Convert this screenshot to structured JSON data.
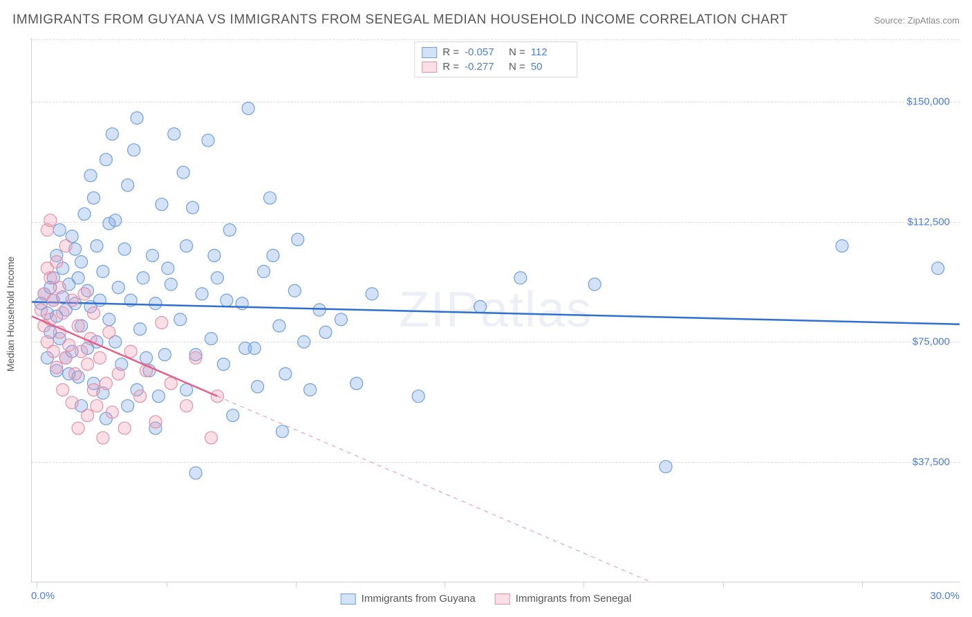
{
  "title": "IMMIGRANTS FROM GUYANA VS IMMIGRANTS FROM SENEGAL MEDIAN HOUSEHOLD INCOME CORRELATION CHART",
  "source": "Source: ZipAtlas.com",
  "watermark": "ZIPatlas",
  "chart": {
    "type": "scatter",
    "ylabel": "Median Household Income",
    "xlim": [
      0.0,
      30.0
    ],
    "xlim_labels": [
      "0.0%",
      "30.0%"
    ],
    "ylim": [
      0,
      170000
    ],
    "ytick_values": [
      37500,
      75000,
      112500,
      150000
    ],
    "ytick_labels": [
      "$37,500",
      "$75,000",
      "$112,500",
      "$150,000"
    ],
    "xtick_positions_pct": [
      0.5,
      14.5,
      28.5,
      44.5,
      59.5,
      74.5,
      89.5
    ],
    "grid_color": "#dcdcdc",
    "axis_color": "#d0d0d0",
    "background_color": "#ffffff",
    "ytick_label_color": "#4a7dd6",
    "ylabel_color": "#555555",
    "marker_radius": 9,
    "marker_stroke_width": 1.2,
    "trend_line_width": 2.5
  },
  "series": [
    {
      "name": "Immigrants from Guyana",
      "fill_color": "rgba(120,165,230,0.32)",
      "stroke_color": "#6f9fe0",
      "trend_color": "#2f6fd0",
      "R": "-0.057",
      "N": "112",
      "trend": {
        "x1": 0.0,
        "y1": 87500,
        "x2": 30.0,
        "y2": 80500
      },
      "trend_dash_extrapolate": false,
      "points": [
        [
          0.3,
          87000
        ],
        [
          0.4,
          90000
        ],
        [
          0.5,
          84000
        ],
        [
          0.6,
          92000
        ],
        [
          0.6,
          78000
        ],
        [
          0.7,
          88000
        ],
        [
          0.7,
          95000
        ],
        [
          0.8,
          83000
        ],
        [
          0.8,
          102000
        ],
        [
          0.9,
          110000
        ],
        [
          0.9,
          76000
        ],
        [
          1.0,
          89000
        ],
        [
          1.0,
          98000
        ],
        [
          1.1,
          70000
        ],
        [
          1.1,
          85000
        ],
        [
          1.2,
          93000
        ],
        [
          1.3,
          72000
        ],
        [
          1.3,
          108000
        ],
        [
          1.4,
          87000
        ],
        [
          1.5,
          64000
        ],
        [
          1.5,
          95000
        ],
        [
          1.6,
          100000
        ],
        [
          1.6,
          80000
        ],
        [
          1.7,
          115000
        ],
        [
          1.8,
          73000
        ],
        [
          1.8,
          91000
        ],
        [
          1.9,
          86000
        ],
        [
          2.0,
          120000
        ],
        [
          2.0,
          62000
        ],
        [
          2.1,
          105000
        ],
        [
          2.2,
          88000
        ],
        [
          2.3,
          59000
        ],
        [
          2.3,
          97000
        ],
        [
          2.4,
          51000
        ],
        [
          2.5,
          112000
        ],
        [
          2.5,
          82000
        ],
        [
          2.6,
          140000
        ],
        [
          2.7,
          75000
        ],
        [
          2.8,
          92000
        ],
        [
          2.9,
          68000
        ],
        [
          3.0,
          104000
        ],
        [
          3.1,
          55000
        ],
        [
          3.2,
          88000
        ],
        [
          3.3,
          135000
        ],
        [
          3.4,
          145000
        ],
        [
          3.5,
          79000
        ],
        [
          3.6,
          95000
        ],
        [
          3.8,
          66000
        ],
        [
          3.9,
          102000
        ],
        [
          4.0,
          48000
        ],
        [
          4.0,
          87000
        ],
        [
          4.2,
          118000
        ],
        [
          4.3,
          71000
        ],
        [
          4.5,
          93000
        ],
        [
          4.6,
          140000
        ],
        [
          4.8,
          82000
        ],
        [
          5.0,
          105000
        ],
        [
          5.0,
          60000
        ],
        [
          5.2,
          117000
        ],
        [
          5.3,
          34000
        ],
        [
          5.5,
          90000
        ],
        [
          5.7,
          138000
        ],
        [
          5.8,
          76000
        ],
        [
          6.0,
          95000
        ],
        [
          6.2,
          68000
        ],
        [
          6.4,
          110000
        ],
        [
          6.5,
          52000
        ],
        [
          6.8,
          87000
        ],
        [
          7.0,
          148000
        ],
        [
          7.2,
          73000
        ],
        [
          7.5,
          97000
        ],
        [
          7.8,
          102000
        ],
        [
          8.0,
          80000
        ],
        [
          8.2,
          65000
        ],
        [
          8.5,
          91000
        ],
        [
          8.8,
          75000
        ],
        [
          9.0,
          60000
        ],
        [
          9.3,
          85000
        ],
        [
          10.0,
          82000
        ],
        [
          10.5,
          62000
        ],
        [
          14.5,
          86000
        ],
        [
          15.8,
          95000
        ],
        [
          18.2,
          93000
        ],
        [
          20.5,
          36000
        ],
        [
          26.2,
          105000
        ],
        [
          29.3,
          98000
        ],
        [
          1.2,
          65000
        ],
        [
          1.4,
          104000
        ],
        [
          1.6,
          55000
        ],
        [
          1.9,
          127000
        ],
        [
          2.1,
          75000
        ],
        [
          2.4,
          132000
        ],
        [
          2.7,
          113000
        ],
        [
          3.1,
          124000
        ],
        [
          3.4,
          60000
        ],
        [
          3.7,
          70000
        ],
        [
          4.1,
          58000
        ],
        [
          4.4,
          98000
        ],
        [
          4.9,
          128000
        ],
        [
          5.3,
          71000
        ],
        [
          5.9,
          102000
        ],
        [
          6.3,
          88000
        ],
        [
          6.9,
          73000
        ],
        [
          7.3,
          61000
        ],
        [
          7.7,
          120000
        ],
        [
          8.1,
          47000
        ],
        [
          8.6,
          107000
        ],
        [
          9.5,
          78000
        ],
        [
          11.0,
          90000
        ],
        [
          12.5,
          58000
        ],
        [
          0.5,
          70000
        ],
        [
          0.8,
          66000
        ]
      ]
    },
    {
      "name": "Immigrants from Senegal",
      "fill_color": "rgba(240,150,175,0.30)",
      "stroke_color": "#e88fa8",
      "trend_color": "#e65f8a",
      "R": "-0.277",
      "N": "50",
      "trend": {
        "x1": 0.0,
        "y1": 83000,
        "x2": 6.0,
        "y2": 58000
      },
      "trend_dash_extrapolate": true,
      "trend_extrapolate": {
        "x1": 6.0,
        "y1": 58000,
        "x2": 20.0,
        "y2": 0
      },
      "points": [
        [
          0.3,
          85000
        ],
        [
          0.4,
          80000
        ],
        [
          0.4,
          90000
        ],
        [
          0.5,
          110000
        ],
        [
          0.5,
          75000
        ],
        [
          0.6,
          82000
        ],
        [
          0.6,
          95000
        ],
        [
          0.7,
          72000
        ],
        [
          0.7,
          88000
        ],
        [
          0.8,
          100000
        ],
        [
          0.8,
          67000
        ],
        [
          0.9,
          78000
        ],
        [
          0.9,
          92000
        ],
        [
          1.0,
          84000
        ],
        [
          1.0,
          60000
        ],
        [
          1.1,
          70000
        ],
        [
          1.1,
          105000
        ],
        [
          1.2,
          74000
        ],
        [
          1.3,
          88000
        ],
        [
          1.3,
          56000
        ],
        [
          1.4,
          65000
        ],
        [
          1.5,
          80000
        ],
        [
          1.5,
          48000
        ],
        [
          1.6,
          72000
        ],
        [
          1.7,
          90000
        ],
        [
          1.8,
          52000
        ],
        [
          1.8,
          68000
        ],
        [
          1.9,
          76000
        ],
        [
          2.0,
          60000
        ],
        [
          2.0,
          84000
        ],
        [
          2.1,
          55000
        ],
        [
          2.2,
          70000
        ],
        [
          2.3,
          45000
        ],
        [
          2.4,
          62000
        ],
        [
          2.5,
          78000
        ],
        [
          2.6,
          53000
        ],
        [
          2.8,
          65000
        ],
        [
          3.0,
          48000
        ],
        [
          3.2,
          72000
        ],
        [
          3.5,
          58000
        ],
        [
          3.7,
          66000
        ],
        [
          4.0,
          50000
        ],
        [
          4.2,
          81000
        ],
        [
          4.5,
          62000
        ],
        [
          5.0,
          55000
        ],
        [
          5.3,
          70000
        ],
        [
          5.8,
          45000
        ],
        [
          6.0,
          58000
        ],
        [
          0.6,
          113000
        ],
        [
          0.5,
          98000
        ]
      ]
    }
  ],
  "legend_top": {
    "stat1_label": "R =",
    "stat2_label": "N ="
  },
  "legend_bottom": {
    "items": [
      {
        "label": "Immigrants from Guyana"
      },
      {
        "label": "Immigrants from Senegal"
      }
    ]
  }
}
